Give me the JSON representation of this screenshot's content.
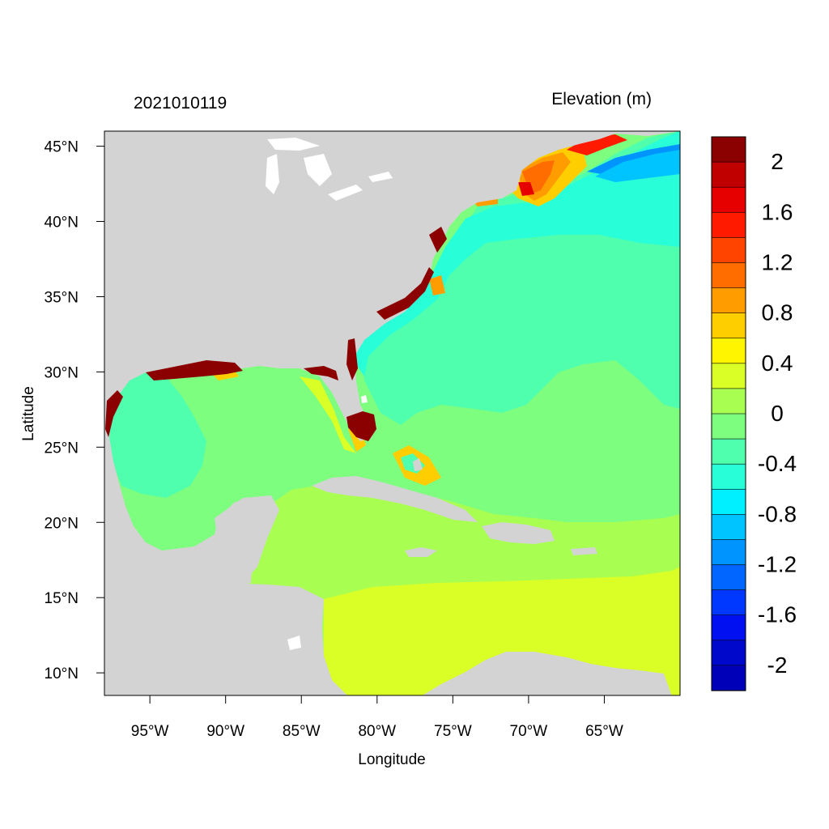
{
  "map": {
    "timestamp": "2021010119",
    "variable_title": "Elevation (m)",
    "x_axis_label": "Longitude",
    "y_axis_label": "Latitude",
    "lon_range": [
      -98,
      -60
    ],
    "lat_range": [
      8.5,
      46
    ],
    "lon_ticks": [
      {
        "value": -95,
        "label": "95°W"
      },
      {
        "value": -90,
        "label": "90°W"
      },
      {
        "value": -85,
        "label": "85°W"
      },
      {
        "value": -80,
        "label": "80°W"
      },
      {
        "value": -75,
        "label": "75°W"
      },
      {
        "value": -70,
        "label": "70°W"
      },
      {
        "value": -65,
        "label": "65°W"
      }
    ],
    "lat_ticks": [
      {
        "value": 45,
        "label": "45°N"
      },
      {
        "value": 40,
        "label": "40°N"
      },
      {
        "value": 35,
        "label": "35°N"
      },
      {
        "value": 30,
        "label": "30°N"
      },
      {
        "value": 25,
        "label": "25°N"
      },
      {
        "value": 20,
        "label": "20°N"
      },
      {
        "value": 15,
        "label": "15°N"
      },
      {
        "value": 10,
        "label": "10°N"
      }
    ],
    "colors": {
      "land": "#d3d3d3",
      "lakes": "#ffffff",
      "ocean_base": "#7dfe7e"
    }
  },
  "colorbar": {
    "levels": [
      {
        "color": "#8b0000"
      },
      {
        "color": "#c00000"
      },
      {
        "color": "#e60000"
      },
      {
        "color": "#ff1a00"
      },
      {
        "color": "#ff4400"
      },
      {
        "color": "#ff6d00"
      },
      {
        "color": "#ff9d00"
      },
      {
        "color": "#ffce00"
      },
      {
        "color": "#fff500"
      },
      {
        "color": "#d9ff26"
      },
      {
        "color": "#a8ff52"
      },
      {
        "color": "#7dfe7e"
      },
      {
        "color": "#50ffad"
      },
      {
        "color": "#28ffd8"
      },
      {
        "color": "#00f0ff"
      },
      {
        "color": "#00c4ff"
      },
      {
        "color": "#0094ff"
      },
      {
        "color": "#0066ff"
      },
      {
        "color": "#0038ff"
      },
      {
        "color": "#0010f0"
      },
      {
        "color": "#0008cc"
      },
      {
        "color": "#0000b8"
      }
    ],
    "labels": [
      "2",
      "1.6",
      "1.2",
      "0.8",
      "0.4",
      "0",
      "-0.4",
      "-0.8",
      "-1.2",
      "-1.6",
      "-2"
    ]
  }
}
